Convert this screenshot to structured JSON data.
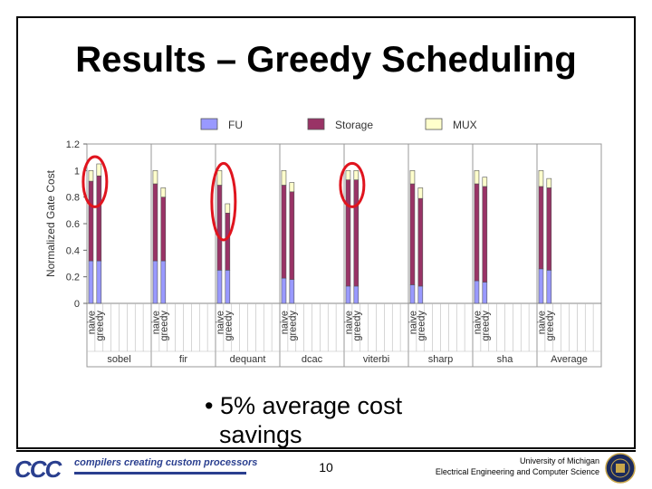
{
  "slide": {
    "title": "Results – Greedy Scheduling",
    "bullet_line1": "• 5% average cost",
    "bullet_line2": "savings",
    "page_number": "10",
    "logo_mark": "CCC",
    "logo_text": "compilers creating custom processors",
    "university_line1": "University of Michigan",
    "university_line2": "Electrical Engineering and Computer Science"
  },
  "chart_data": {
    "type": "bar",
    "stacked": true,
    "title": "",
    "xlabel": "",
    "ylabel": "Normalized Gate Cost",
    "ylim": [
      0,
      1.2
    ],
    "yticks": [
      0,
      0.2,
      0.4,
      0.6,
      0.8,
      1,
      1.2
    ],
    "ytick_labels": [
      "0",
      "0.2",
      "0.4",
      "0.6",
      "0.8",
      "1",
      "1.2"
    ],
    "groups": [
      "sobel",
      "fir",
      "dequant",
      "dcac",
      "viterbi",
      "sharp",
      "sha",
      "Average"
    ],
    "bar_labels": [
      "naive",
      "greedy"
    ],
    "legend": [
      {
        "name": "FU",
        "color": "#9999ff"
      },
      {
        "name": "Storage",
        "color": "#993366"
      },
      {
        "name": "MUX",
        "color": "#ffffcc"
      }
    ],
    "legend_position": "top",
    "highlighted_groups": [
      "sobel",
      "dequant",
      "viterbi"
    ],
    "highlight_color": "#e0141e",
    "series": [
      {
        "name": "FU",
        "naive": [
          0.32,
          0.32,
          0.25,
          0.19,
          0.13,
          0.14,
          0.17,
          0.26
        ],
        "greedy": [
          0.32,
          0.32,
          0.25,
          0.18,
          0.13,
          0.13,
          0.16,
          0.25
        ]
      },
      {
        "name": "Storage",
        "naive": [
          0.6,
          0.58,
          0.64,
          0.7,
          0.8,
          0.76,
          0.73,
          0.62
        ],
        "greedy": [
          0.64,
          0.48,
          0.43,
          0.66,
          0.8,
          0.66,
          0.72,
          0.62
        ]
      },
      {
        "name": "MUX",
        "naive": [
          0.08,
          0.1,
          0.11,
          0.11,
          0.07,
          0.1,
          0.1,
          0.12
        ],
        "greedy": [
          0.09,
          0.07,
          0.07,
          0.07,
          0.07,
          0.08,
          0.07,
          0.07
        ]
      }
    ]
  }
}
